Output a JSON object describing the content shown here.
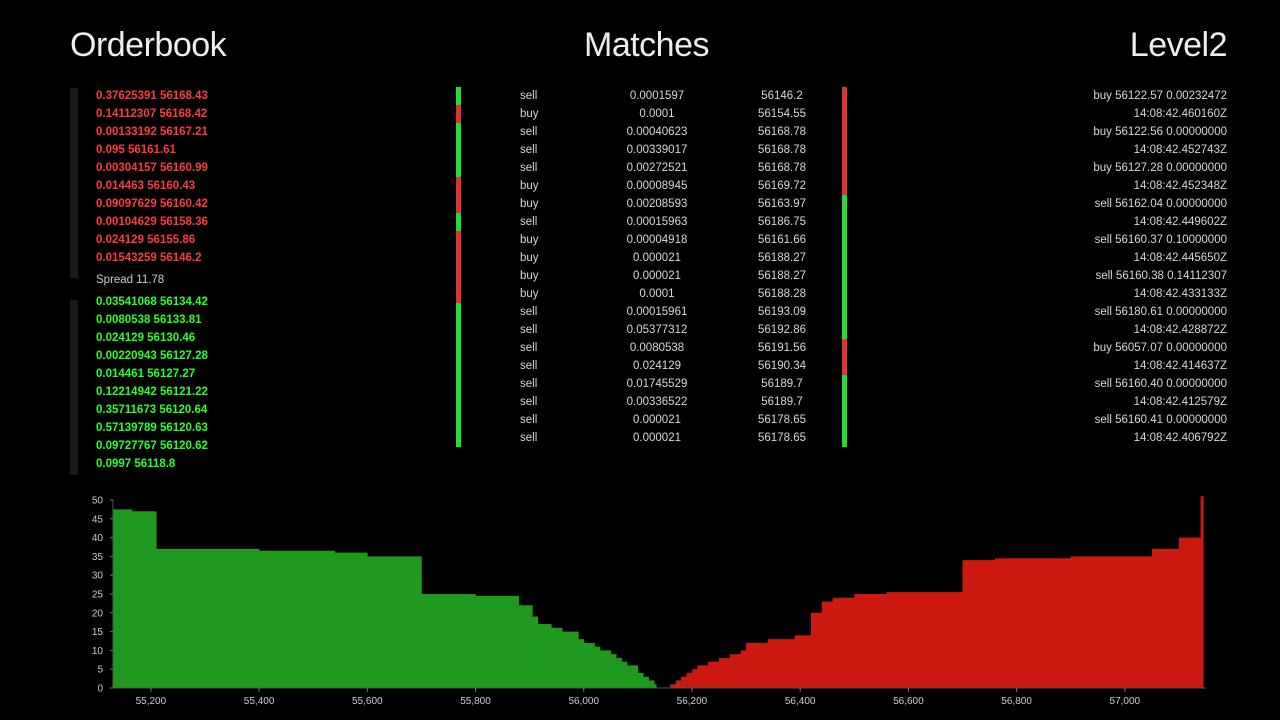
{
  "titles": {
    "orderbook": "Orderbook",
    "matches": "Matches",
    "level2": "Level2"
  },
  "orderbook": {
    "asks": [
      "0.37625391 56168.43",
      "0.14112307 56168.42",
      "0.00133192 56167.21",
      "0.095 56161.61",
      "0.00304157 56160.99",
      "0.014463 56160.43",
      "0.09097629 56160.42",
      "0.00104629 56158.36",
      "0.024129 56155.86",
      "0.01543259 56146.2"
    ],
    "spread": "Spread 11.78",
    "bids": [
      "0.03541068 56134.42",
      "0.0080538 56133.81",
      "0.024129 56130.46",
      "0.00220943 56127.28",
      "0.014461 56127.27",
      "0.12214942 56121.22",
      "0.35711673 56120.64",
      "0.57139789 56120.63",
      "0.09727767 56120.62",
      "0.0997 56118.8"
    ]
  },
  "matches": {
    "rows": [
      {
        "side": "sell",
        "size": "0.0001597",
        "price": "56146.2"
      },
      {
        "side": "buy",
        "size": "0.0001",
        "price": "56154.55"
      },
      {
        "side": "sell",
        "size": "0.00040623",
        "price": "56168.78"
      },
      {
        "side": "sell",
        "size": "0.00339017",
        "price": "56168.78"
      },
      {
        "side": "sell",
        "size": "0.00272521",
        "price": "56168.78"
      },
      {
        "side": "buy",
        "size": "0.00008945",
        "price": "56169.72"
      },
      {
        "side": "buy",
        "size": "0.00208593",
        "price": "56163.97"
      },
      {
        "side": "sell",
        "size": "0.00015963",
        "price": "56186.75"
      },
      {
        "side": "buy",
        "size": "0.00004918",
        "price": "56161.66"
      },
      {
        "side": "buy",
        "size": "0.000021",
        "price": "56188.27"
      },
      {
        "side": "buy",
        "size": "0.000021",
        "price": "56188.27"
      },
      {
        "side": "buy",
        "size": "0.0001",
        "price": "56188.28"
      },
      {
        "side": "sell",
        "size": "0.00015961",
        "price": "56193.09"
      },
      {
        "side": "sell",
        "size": "0.05377312",
        "price": "56192.86"
      },
      {
        "side": "sell",
        "size": "0.0080538",
        "price": "56191.56"
      },
      {
        "side": "sell",
        "size": "0.024129",
        "price": "56190.34"
      },
      {
        "side": "sell",
        "size": "0.01745529",
        "price": "56189.7"
      },
      {
        "side": "sell",
        "size": "0.00336522",
        "price": "56189.7"
      },
      {
        "side": "sell",
        "size": "0.000021",
        "price": "56178.65"
      },
      {
        "side": "sell",
        "size": "0.000021",
        "price": "56178.65"
      }
    ],
    "right_bar": [
      "red",
      "red",
      "red",
      "red",
      "red",
      "red",
      "green",
      "green",
      "green",
      "green",
      "green",
      "green",
      "green",
      "green",
      "red",
      "red",
      "green",
      "green",
      "green",
      "green"
    ]
  },
  "level2": {
    "rows": [
      "buy 56122.57 0.00232472",
      "14:08:42.460160Z",
      "buy 56122.56 0.00000000",
      "14:08:42.452743Z",
      "buy 56127.28 0.00000000",
      "14:08:42.452348Z",
      "sell 56162.04 0.00000000",
      "14:08:42.449602Z",
      "sell 56160.37 0.10000000",
      "14:08:42.445650Z",
      "sell 56160.38 0.14112307",
      "14:08:42.433133Z",
      "sell 56180.61 0.00000000",
      "14:08:42.428872Z",
      "buy 56057.07 0.00000000",
      "14:08:42.414637Z",
      "sell 56160.40 0.00000000",
      "14:08:42.412579Z",
      "sell 56160.41 0.00000000",
      "14:08:42.406792Z"
    ]
  },
  "colors": {
    "bid": "#1f9a1f",
    "ask": "#cc1a10",
    "bid_text": "#2cff2c",
    "ask_text": "#ff3b3b",
    "bar_green": "#22dd33",
    "bar_red": "#dd3333"
  },
  "chart_data": {
    "type": "area",
    "xlim": [
      55130,
      57150
    ],
    "ylim": [
      0,
      50
    ],
    "xticks": [
      "55,200",
      "55,400",
      "55,600",
      "55,800",
      "56,000",
      "56,200",
      "56,400",
      "56,600",
      "56,800",
      "57,000"
    ],
    "xtick_values": [
      55200,
      55400,
      55600,
      55800,
      56000,
      56200,
      56400,
      56600,
      56800,
      57000
    ],
    "yticks": [
      0,
      5,
      10,
      15,
      20,
      25,
      30,
      35,
      40,
      45,
      50
    ],
    "series": [
      {
        "side": "bids",
        "x": [
          55130,
          55165,
          55210,
          55400,
          55540,
          55600,
          55680,
          55700,
          55800,
          55880,
          55905,
          55915,
          55940,
          55960,
          55990,
          56000,
          56020,
          56030,
          56050,
          56060,
          56070,
          56080,
          56100,
          56110,
          56120,
          56130,
          56134
        ],
        "y": [
          47.5,
          47,
          37,
          36.5,
          36,
          35,
          35,
          25,
          24.5,
          22,
          19,
          17,
          16,
          15,
          13,
          12,
          11,
          10,
          9,
          8,
          7,
          6,
          4,
          3,
          2,
          1,
          0
        ]
      },
      {
        "side": "asks",
        "x": [
          56146,
          56160,
          56170,
          56180,
          56190,
          56200,
          56210,
          56230,
          56250,
          56270,
          56290,
          56300,
          56340,
          56390,
          56420,
          56440,
          56460,
          56500,
          56560,
          56700,
          56760,
          56900,
          57050,
          57100,
          57140,
          57145
        ],
        "y": [
          0,
          1,
          2,
          3,
          4,
          5,
          6,
          7,
          8,
          9,
          10,
          12,
          13,
          14,
          20,
          23,
          24,
          25,
          25.5,
          34,
          34.5,
          35,
          37,
          40,
          51,
          51
        ]
      }
    ]
  }
}
